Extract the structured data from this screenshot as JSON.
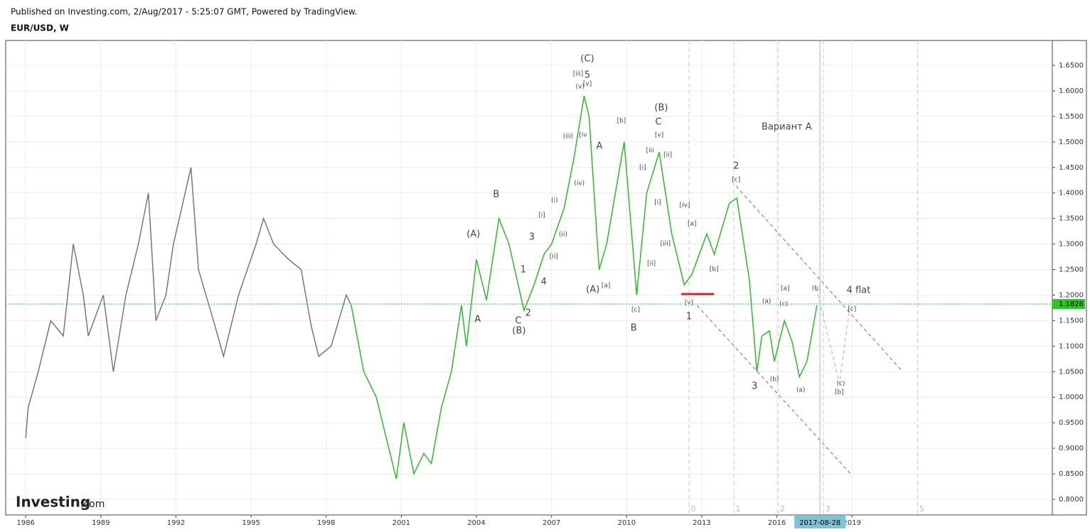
{
  "header": {
    "published": "Published on Investing.com, 2/Aug/2017 - 5:25:07 GMT, Powered by TradingView.",
    "symbol": "EUR/USD, W"
  },
  "logo": {
    "brand": "Investing",
    "suffix": ".com"
  },
  "chart_data": {
    "type": "line",
    "grid": true,
    "xlim": [
      1985.2,
      2027.0
    ],
    "ylim": [
      0.7694,
      1.6987
    ],
    "xticks": [
      1986,
      1989,
      1992,
      1995,
      1998,
      2001,
      2004,
      2007,
      2010,
      2013,
      2016,
      2019
    ],
    "yticks": [
      {
        "value": 0.8,
        "label": "0.8000"
      },
      {
        "value": 0.85,
        "label": "0.8500"
      },
      {
        "value": 0.9,
        "label": "0.9000"
      },
      {
        "value": 0.95,
        "label": "0.9500"
      },
      {
        "value": 1.0,
        "label": "1.0000"
      },
      {
        "value": 1.05,
        "label": "1.0500"
      },
      {
        "value": 1.1,
        "label": "1.1000"
      },
      {
        "value": 1.15,
        "label": "1.1500"
      },
      {
        "value": 1.2,
        "label": "1.2000"
      },
      {
        "value": 1.25,
        "label": "1.2500"
      },
      {
        "value": 1.3,
        "label": "1.3000"
      },
      {
        "value": 1.35,
        "label": "1.3500"
      },
      {
        "value": 1.4,
        "label": "1.4000"
      },
      {
        "value": 1.45,
        "label": "1.4500"
      },
      {
        "value": 1.5,
        "label": "1.5000"
      },
      {
        "value": 1.55,
        "label": "1.5500"
      },
      {
        "value": 1.6,
        "label": "1.6000"
      },
      {
        "value": 1.65,
        "label": "1.6500"
      }
    ],
    "series": [
      {
        "color": "#777777",
        "x": [
          1986.0,
          1986.1,
          1986.5,
          1987.0,
          1987.5,
          1987.9,
          1988.3,
          1988.5,
          1989.1,
          1989.5,
          1990.0,
          1990.5,
          1990.9,
          1991.2,
          1991.6,
          1991.9,
          1992.6,
          1992.9,
          1993.5,
          1993.9,
          1994.5,
          1995.2,
          1995.5,
          1995.9,
          1996.5,
          1997.0,
          1997.4,
          1997.7,
          1998.2,
          1998.8,
          1999.0
        ],
        "values": [
          0.92,
          0.98,
          1.05,
          1.15,
          1.12,
          1.3,
          1.2,
          1.12,
          1.2,
          1.05,
          1.2,
          1.3,
          1.4,
          1.15,
          1.2,
          1.3,
          1.45,
          1.25,
          1.15,
          1.08,
          1.2,
          1.3,
          1.35,
          1.3,
          1.27,
          1.25,
          1.14,
          1.08,
          1.1,
          1.2,
          1.18
        ]
      },
      {
        "color": "#2eb82e",
        "x": [
          1999.0,
          1999.5,
          2000.0,
          2000.4,
          2000.8,
          2001.1,
          2001.5,
          2001.9,
          2002.2,
          2002.6,
          2003.0,
          2003.4,
          2003.6,
          2004.0,
          2004.4,
          2004.9,
          2005.3,
          2005.9,
          2006.3,
          2006.7,
          2007.0,
          2007.5,
          2007.9,
          2008.3,
          2008.5,
          2008.9,
          2009.2,
          2009.9,
          2010.4,
          2010.8,
          2011.3,
          2011.8,
          2012.3,
          2012.6,
          2013.2,
          2013.5,
          2014.1,
          2014.4,
          2014.9,
          2015.2,
          2015.4,
          2015.7,
          2015.9,
          2016.3,
          2016.6,
          2016.9,
          2017.2,
          2017.6
        ],
        "values": [
          1.18,
          1.05,
          1.0,
          0.92,
          0.84,
          0.95,
          0.85,
          0.89,
          0.87,
          0.98,
          1.05,
          1.18,
          1.1,
          1.27,
          1.19,
          1.35,
          1.3,
          1.17,
          1.22,
          1.28,
          1.3,
          1.37,
          1.47,
          1.59,
          1.55,
          1.25,
          1.3,
          1.5,
          1.2,
          1.4,
          1.48,
          1.32,
          1.22,
          1.24,
          1.32,
          1.28,
          1.38,
          1.39,
          1.23,
          1.05,
          1.12,
          1.13,
          1.07,
          1.15,
          1.11,
          1.04,
          1.07,
          1.18
        ]
      }
    ],
    "current_price": {
      "value": 1.1826,
      "label": "1.1826",
      "color": "#22cc22"
    },
    "current_date": {
      "label": "2017-08-28",
      "x": 2017.72,
      "color": "#7fc4d4"
    },
    "time_markers": [
      {
        "x": 2012.49,
        "label": "0"
      },
      {
        "x": 2014.28,
        "label": "1"
      },
      {
        "x": 2016.05,
        "label": "2"
      },
      {
        "x": 2017.86,
        "label": "3"
      },
      {
        "x": 2021.62,
        "label": "5"
      }
    ],
    "trend_lines": [
      {
        "x": [
          2014.37,
          2020.99
        ],
        "y": [
          1.4135,
          1.0518
        ],
        "color": "#888888",
        "style": "dashed"
      },
      {
        "x": [
          2012.81,
          2018.97
        ],
        "y": [
          1.1798,
          0.8487
        ],
        "color": "#888888",
        "style": "dashed"
      },
      {
        "x": [
          2012.18,
          2013.49
        ],
        "y": [
          1.202,
          1.202
        ],
        "color": "#e02020",
        "style": "solid"
      },
      {
        "x": [
          2017.58,
          2018.5,
          2018.9
        ],
        "y": [
          1.2132,
          1.0267,
          1.1728
        ],
        "color": "#bbbbbb",
        "style": "dashed"
      }
    ],
    "annotations": [
      {
        "x": 2008.43,
        "y": 1.6625,
        "text": "(C)"
      },
      {
        "x": 2008.43,
        "y": 1.6305,
        "text": "5"
      },
      {
        "x": 2008.06,
        "y": 1.6333,
        "text": "[iii]",
        "small": true
      },
      {
        "x": 2008.43,
        "y": 1.6138,
        "text": "[v]",
        "small": true
      },
      {
        "x": 2008.14,
        "y": 1.6083,
        "text": "(v)",
        "small": true
      },
      {
        "x": 2007.66,
        "y": 1.5109,
        "text": "(iii)",
        "small": true
      },
      {
        "x": 2008.26,
        "y": 1.5136,
        "text": "[iv",
        "small": true
      },
      {
        "x": 2008.91,
        "y": 1.4914,
        "text": "A"
      },
      {
        "x": 2008.11,
        "y": 1.4191,
        "text": "(iv)",
        "small": true
      },
      {
        "x": 2007.12,
        "y": 1.3857,
        "text": "(i)",
        "small": true
      },
      {
        "x": 2006.61,
        "y": 1.3564,
        "text": "[i]",
        "small": true
      },
      {
        "x": 2007.46,
        "y": 1.3189,
        "text": "(ii)",
        "small": true
      },
      {
        "x": 2006.21,
        "y": 1.3133,
        "text": "3"
      },
      {
        "x": 2007.09,
        "y": 1.2758,
        "text": "[ii]",
        "small": true
      },
      {
        "x": 2005.87,
        "y": 1.2493,
        "text": "1"
      },
      {
        "x": 2006.69,
        "y": 1.2257,
        "text": "4"
      },
      {
        "x": 2006.07,
        "y": 1.1645,
        "text": "2"
      },
      {
        "x": 2005.67,
        "y": 1.1492,
        "text": "C"
      },
      {
        "x": 2005.7,
        "y": 1.1297,
        "text": "(B)"
      },
      {
        "x": 2004.79,
        "y": 1.3968,
        "text": "B"
      },
      {
        "x": 2003.88,
        "y": 1.3189,
        "text": "(A)"
      },
      {
        "x": 2004.05,
        "y": 1.152,
        "text": "A"
      },
      {
        "x": 2008.65,
        "y": 1.2104,
        "text": "(A)"
      },
      {
        "x": 2009.17,
        "y": 1.2187,
        "text": "[a]",
        "small": true
      },
      {
        "x": 2009.79,
        "y": 1.5415,
        "text": "[b]",
        "small": true
      },
      {
        "x": 2011.38,
        "y": 1.5665,
        "text": "(B)"
      },
      {
        "x": 2011.27,
        "y": 1.5387,
        "text": "C"
      },
      {
        "x": 2011.3,
        "y": 1.5137,
        "text": "[v]",
        "small": true
      },
      {
        "x": 2010.93,
        "y": 1.4833,
        "text": "[iii",
        "small": true
      },
      {
        "x": 2011.64,
        "y": 1.4747,
        "text": "[ii]",
        "small": true
      },
      {
        "x": 2010.64,
        "y": 1.4497,
        "text": "[i]",
        "small": true
      },
      {
        "x": 2011.24,
        "y": 1.3815,
        "text": "[i]",
        "small": true
      },
      {
        "x": 2012.32,
        "y": 1.3759,
        "text": "[iv]",
        "small": true
      },
      {
        "x": 2011.55,
        "y": 1.3008,
        "text": "[iii]",
        "small": true
      },
      {
        "x": 2010.99,
        "y": 1.2619,
        "text": "[ii]",
        "small": true
      },
      {
        "x": 2012.61,
        "y": 1.3398,
        "text": "[a]",
        "small": true
      },
      {
        "x": 2013.49,
        "y": 1.2507,
        "text": "[b]",
        "small": true
      },
      {
        "x": 2010.36,
        "y": 1.1714,
        "text": "[c]",
        "small": true
      },
      {
        "x": 2010.28,
        "y": 1.1353,
        "text": "B"
      },
      {
        "x": 2012.49,
        "y": 1.1853,
        "text": "[v]",
        "small": true
      },
      {
        "x": 2012.49,
        "y": 1.1575,
        "text": "1"
      },
      {
        "x": 2014.37,
        "y": 1.4524,
        "text": "2"
      },
      {
        "x": 2014.37,
        "y": 1.426,
        "text": "[c]",
        "small": true
      },
      {
        "x": 2016.39,
        "y": 1.529,
        "text": "Вариант А"
      },
      {
        "x": 2015.11,
        "y": 1.0212,
        "text": "3"
      },
      {
        "x": 2015.59,
        "y": 1.1881,
        "text": "(a)",
        "small": true
      },
      {
        "x": 2016.33,
        "y": 1.2132,
        "text": "[a]",
        "small": true
      },
      {
        "x": 2016.27,
        "y": 1.1826,
        "text": "(c)",
        "small": true
      },
      {
        "x": 2015.9,
        "y": 1.0351,
        "text": "(b)",
        "small": true
      },
      {
        "x": 2016.95,
        "y": 1.0142,
        "text": "(a)",
        "small": true
      },
      {
        "x": 2017.58,
        "y": 1.2132,
        "text": "(b)",
        "small": true
      },
      {
        "x": 2019.26,
        "y": 1.209,
        "text": "4 flat"
      },
      {
        "x": 2019.0,
        "y": 1.1728,
        "text": "[c]",
        "small": true
      },
      {
        "x": 2018.55,
        "y": 1.0267,
        "text": "(c)",
        "small": true
      },
      {
        "x": 2018.49,
        "y": 1.01,
        "text": "[b]",
        "small": true
      }
    ]
  }
}
